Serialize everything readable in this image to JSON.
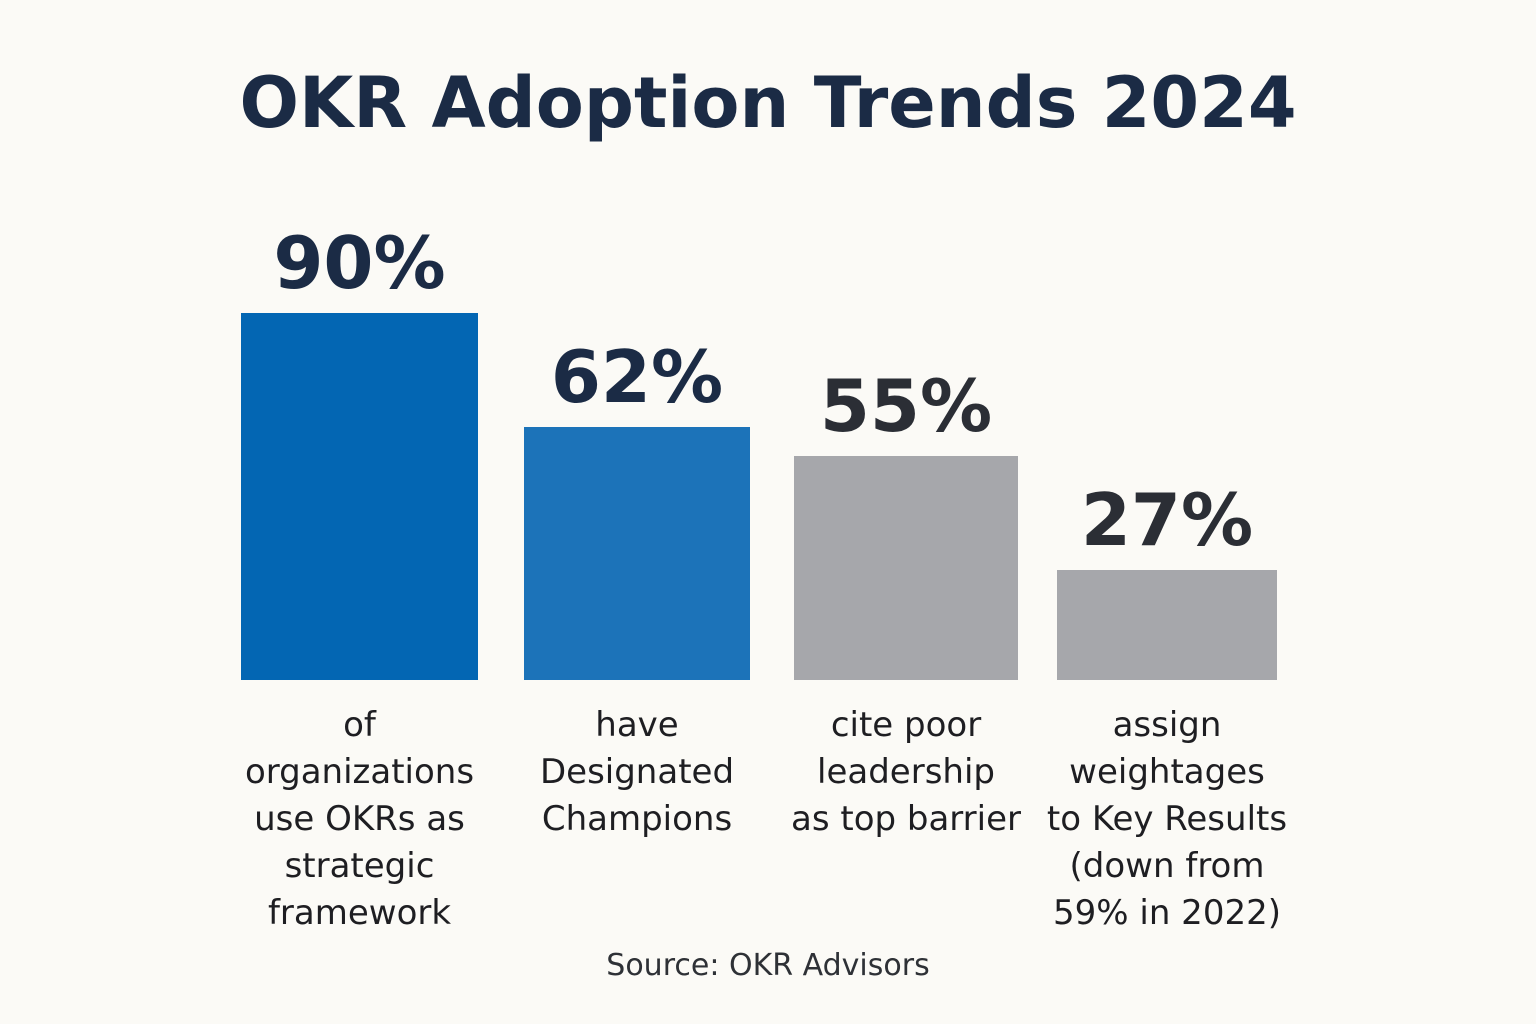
{
  "chart_data": {
    "type": "bar",
    "title": "OKR Adoption Trends 2024",
    "categories": [
      "of\norganizations\nuse OKRs as\nstrategic\nframework",
      "have\nDesignated\nChampions",
      "cite poor\nleadership\nas top barrier",
      "assign\nweightages\nto Key Results\n(down from\n59% in 2022)"
    ],
    "values": [
      90,
      62,
      55,
      27
    ],
    "value_labels": [
      "90%",
      "62%",
      "55%",
      "27%"
    ],
    "bar_colors": [
      "#0366b3",
      "#1c73b9",
      "#a6a7ab",
      "#a6a7ab"
    ],
    "label_colors": [
      "#1b2b45",
      "#1b2b45",
      "#2b2e35",
      "#2b2e35"
    ],
    "xlabel": "",
    "ylabel": "",
    "grid": false,
    "source": "Source: OKR Advisors"
  }
}
